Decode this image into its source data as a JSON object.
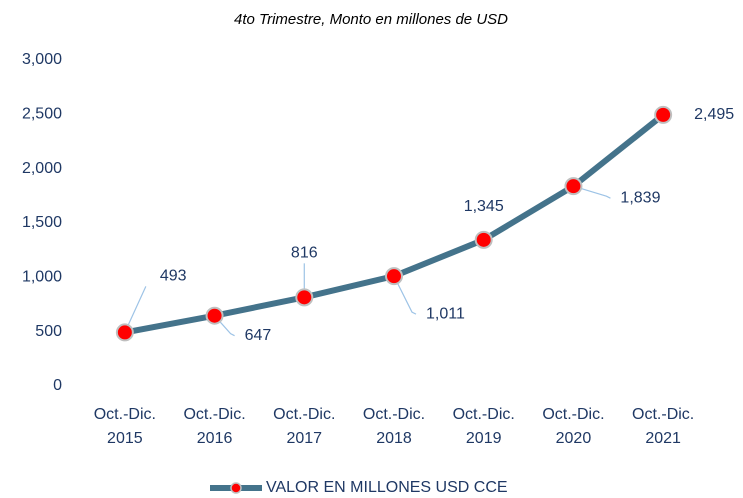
{
  "chart_data": {
    "type": "line",
    "subtitle": "4to Trimestre, Monto en millones de USD",
    "categories": [
      [
        "Oct.-Dic.",
        "2015"
      ],
      [
        "Oct.-Dic.",
        "2016"
      ],
      [
        "Oct.-Dic.",
        "2017"
      ],
      [
        "Oct.-Dic.",
        "2018"
      ],
      [
        "Oct.-Dic.",
        "2019"
      ],
      [
        "Oct.-Dic.",
        "2020"
      ],
      [
        "Oct.-Dic.",
        "2021"
      ]
    ],
    "series": [
      {
        "name": "VALOR EN MILLONES USD CCE",
        "color": "#44738b",
        "marker_color": "#ff0000",
        "values": [
          493,
          647,
          816,
          1011,
          1345,
          1839,
          2495
        ],
        "value_labels": [
          "493",
          "647",
          "816",
          "1,011",
          "1,345",
          "1,839",
          "2,495"
        ]
      }
    ],
    "ylim": [
      0,
      3000
    ],
    "yticks": [
      0,
      500,
      {
        "value": 1000,
        "label": "1,000"
      },
      {
        "value": 1500,
        "label": "1,500"
      },
      {
        "value": 2000,
        "label": "2,000"
      },
      {
        "value": 2500,
        "label": "2,500"
      },
      {
        "value": 3000,
        "label": "3,000"
      }
    ],
    "grid": false,
    "legend": "bottom"
  }
}
